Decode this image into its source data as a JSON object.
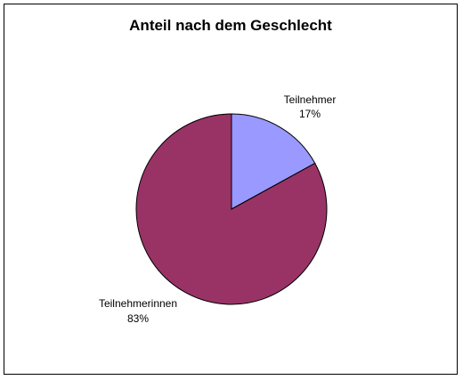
{
  "chart_data": {
    "type": "pie",
    "title": "Anteil nach dem Geschlecht",
    "slices": [
      {
        "label": "Teilnehmer",
        "percent_label": "17%",
        "value": 17,
        "color": "#9999ff"
      },
      {
        "label": "Teilnehmerinnen",
        "percent_label": "83%",
        "value": 83,
        "color": "#993366"
      }
    ],
    "legend": false
  }
}
